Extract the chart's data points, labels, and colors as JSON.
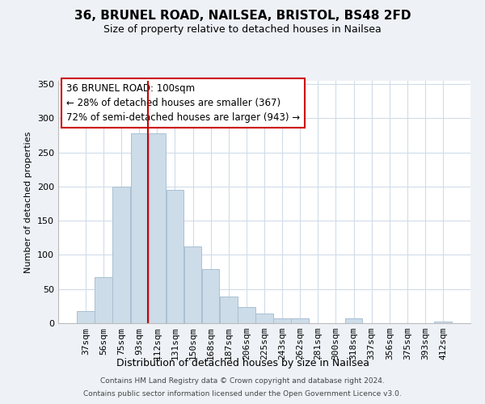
{
  "title": "36, BRUNEL ROAD, NAILSEA, BRISTOL, BS48 2FD",
  "subtitle": "Size of property relative to detached houses in Nailsea",
  "xlabel": "Distribution of detached houses by size in Nailsea",
  "ylabel": "Number of detached properties",
  "bins": [
    "37sqm",
    "56sqm",
    "75sqm",
    "93sqm",
    "112sqm",
    "131sqm",
    "150sqm",
    "168sqm",
    "187sqm",
    "206sqm",
    "225sqm",
    "243sqm",
    "262sqm",
    "281sqm",
    "300sqm",
    "318sqm",
    "337sqm",
    "356sqm",
    "375sqm",
    "393sqm",
    "412sqm"
  ],
  "values": [
    18,
    68,
    200,
    278,
    278,
    195,
    113,
    79,
    39,
    24,
    14,
    7,
    7,
    0,
    0,
    7,
    0,
    0,
    0,
    0,
    2
  ],
  "bar_color": "#ccdce8",
  "bar_edge_color": "#aac0d4",
  "highlight_line_color": "#cc0000",
  "annotation_title": "36 BRUNEL ROAD: 100sqm",
  "annotation_line1": "← 28% of detached houses are smaller (367)",
  "annotation_line2": "72% of semi-detached houses are larger (943) →",
  "annotation_box_color": "#ffffff",
  "annotation_box_edge": "#cc0000",
  "ylim": [
    0,
    355
  ],
  "yticks": [
    0,
    50,
    100,
    150,
    200,
    250,
    300,
    350
  ],
  "footer1": "Contains HM Land Registry data © Crown copyright and database right 2024.",
  "footer2": "Contains public sector information licensed under the Open Government Licence v3.0.",
  "background_color": "#eef2f7",
  "plot_background": "#ffffff",
  "grid_color": "#d0dce8"
}
